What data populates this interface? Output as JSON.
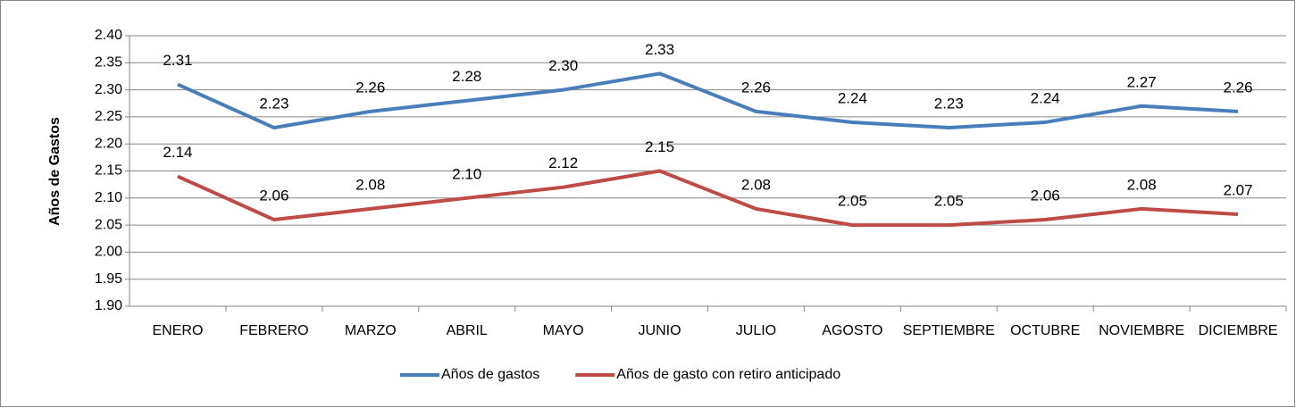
{
  "chart_data": {
    "type": "line",
    "y_label": "Años de Gastos",
    "categories": [
      "ENERO",
      "FEBRERO",
      "MARZO",
      "ABRIL",
      "MAYO",
      "JUNIO",
      "JULIO",
      "AGOSTO",
      "SEPTIEMBRE",
      "OCTUBRE",
      "NOVIEMBRE",
      "DICIEMBRE"
    ],
    "series": [
      {
        "name": "Años de gastos",
        "color": "#4a7ebb",
        "values": [
          2.31,
          2.23,
          2.26,
          2.28,
          2.3,
          2.33,
          2.26,
          2.24,
          2.23,
          2.24,
          2.27,
          2.26
        ],
        "value_labels": [
          "2.31",
          "2.23",
          "2.26",
          "2.28",
          "2.30",
          "2.33",
          "2.26",
          "2.24",
          "2.23",
          "2.24",
          "2.27",
          "2.26"
        ]
      },
      {
        "name": "Años de gasto con retiro anticipado",
        "color": "#be4b48",
        "values": [
          2.14,
          2.06,
          2.08,
          2.1,
          2.12,
          2.15,
          2.08,
          2.05,
          2.05,
          2.06,
          2.08,
          2.07
        ],
        "value_labels": [
          "2.14",
          "2.06",
          "2.08",
          "2.10",
          "2.12",
          "2.15",
          "2.08",
          "2.05",
          "2.05",
          "2.06",
          "2.08",
          "2.07"
        ]
      }
    ],
    "ylim": [
      1.9,
      2.4
    ],
    "yticks": [
      {
        "value": 1.9,
        "label": "1.90"
      },
      {
        "value": 1.95,
        "label": "1.95"
      },
      {
        "value": 2.0,
        "label": "2.00"
      },
      {
        "value": 2.05,
        "label": "2.05"
      },
      {
        "value": 2.1,
        "label": "2.10"
      },
      {
        "value": 2.15,
        "label": "2.15"
      },
      {
        "value": 2.2,
        "label": "2.20"
      },
      {
        "value": 2.25,
        "label": "2.25"
      },
      {
        "value": 2.3,
        "label": "2.30"
      },
      {
        "value": 2.35,
        "label": "2.35"
      },
      {
        "value": 2.4,
        "label": "2.40"
      }
    ],
    "grid": true,
    "legend": "bottom"
  }
}
